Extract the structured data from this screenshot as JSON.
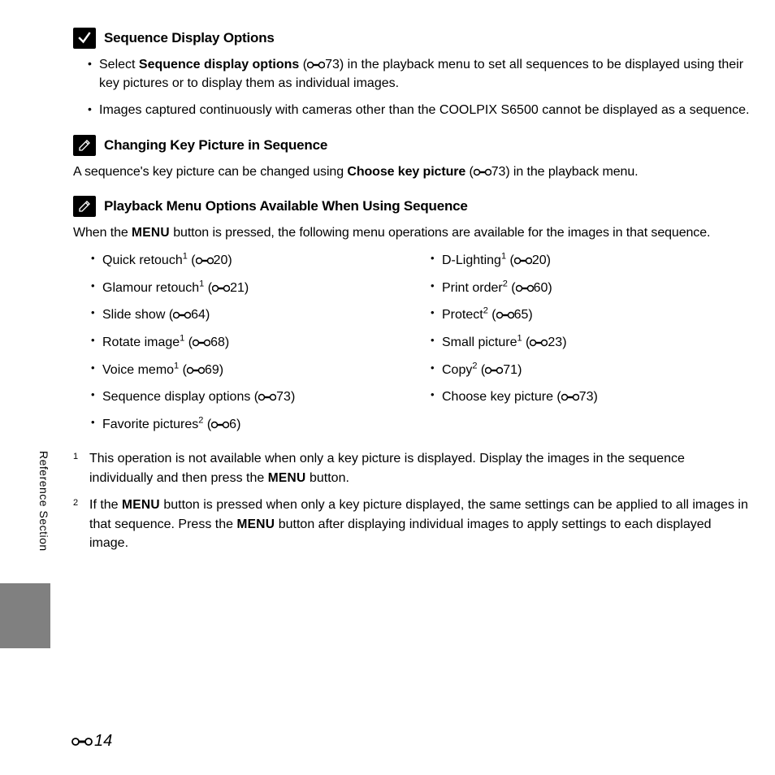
{
  "sections": [
    {
      "icon": "check",
      "title": "Sequence Display Options",
      "bullets": [
        {
          "pre": "Select ",
          "bold": "Sequence display options",
          "mid": " (",
          "ref": "73",
          "post": ") in the playback menu to set all sequences to be displayed using their key pictures or to display them as individual images."
        },
        {
          "text": "Images captured continuously with cameras other than the COOLPIX S6500 cannot be displayed as a sequence."
        }
      ]
    },
    {
      "icon": "pencil",
      "title": "Changing Key Picture in Sequence",
      "para": {
        "pre": "A sequence's key picture can be changed using ",
        "bold": "Choose key picture",
        "mid": " (",
        "ref": "73",
        "post": ") in the playback menu."
      }
    },
    {
      "icon": "pencil",
      "title": "Playback Menu Options Available When Using Sequence",
      "intro": {
        "pre": "When the ",
        "menu": "MENU",
        "post": " button is pressed, the following menu operations are available for the images in that sequence."
      }
    }
  ],
  "menu_left": [
    {
      "label": "Quick retouch",
      "sup": "1",
      "ref": "20"
    },
    {
      "label": "Glamour retouch",
      "sup": "1",
      "ref": "21"
    },
    {
      "label": "Slide show",
      "sup": "",
      "ref": "64"
    },
    {
      "label": "Rotate image",
      "sup": "1",
      "ref": "68"
    },
    {
      "label": "Voice memo",
      "sup": "1",
      "ref": "69"
    },
    {
      "label": "Sequence display options",
      "sup": "",
      "ref": "73"
    },
    {
      "label": "Favorite pictures",
      "sup": "2",
      "ref": "6"
    }
  ],
  "menu_right": [
    {
      "label": "D-Lighting",
      "sup": "1",
      "ref": "20"
    },
    {
      "label": "Print order",
      "sup": "2",
      "ref": "60"
    },
    {
      "label": "Protect",
      "sup": "2",
      "ref": "65"
    },
    {
      "label": "Small picture",
      "sup": "1",
      "ref": "23"
    },
    {
      "label": "Copy",
      "sup": "2",
      "ref": "71"
    },
    {
      "label": "Choose key picture",
      "sup": "",
      "ref": "73"
    }
  ],
  "footnotes": [
    {
      "num": "1",
      "pre": "This operation is not available when only a key picture is displayed. Display the images in the sequence individually and then press the ",
      "menu": "MENU",
      "post": " button."
    },
    {
      "num": "2",
      "pre": "If the ",
      "menu": "MENU",
      "mid": " button is pressed when only a key picture displayed, the same settings can be applied to all images in that sequence. Press the ",
      "menu2": "MENU",
      "post": " button after displaying individual images to apply settings to each displayed image."
    }
  ],
  "side_label": "Reference Section",
  "page_number": "14"
}
